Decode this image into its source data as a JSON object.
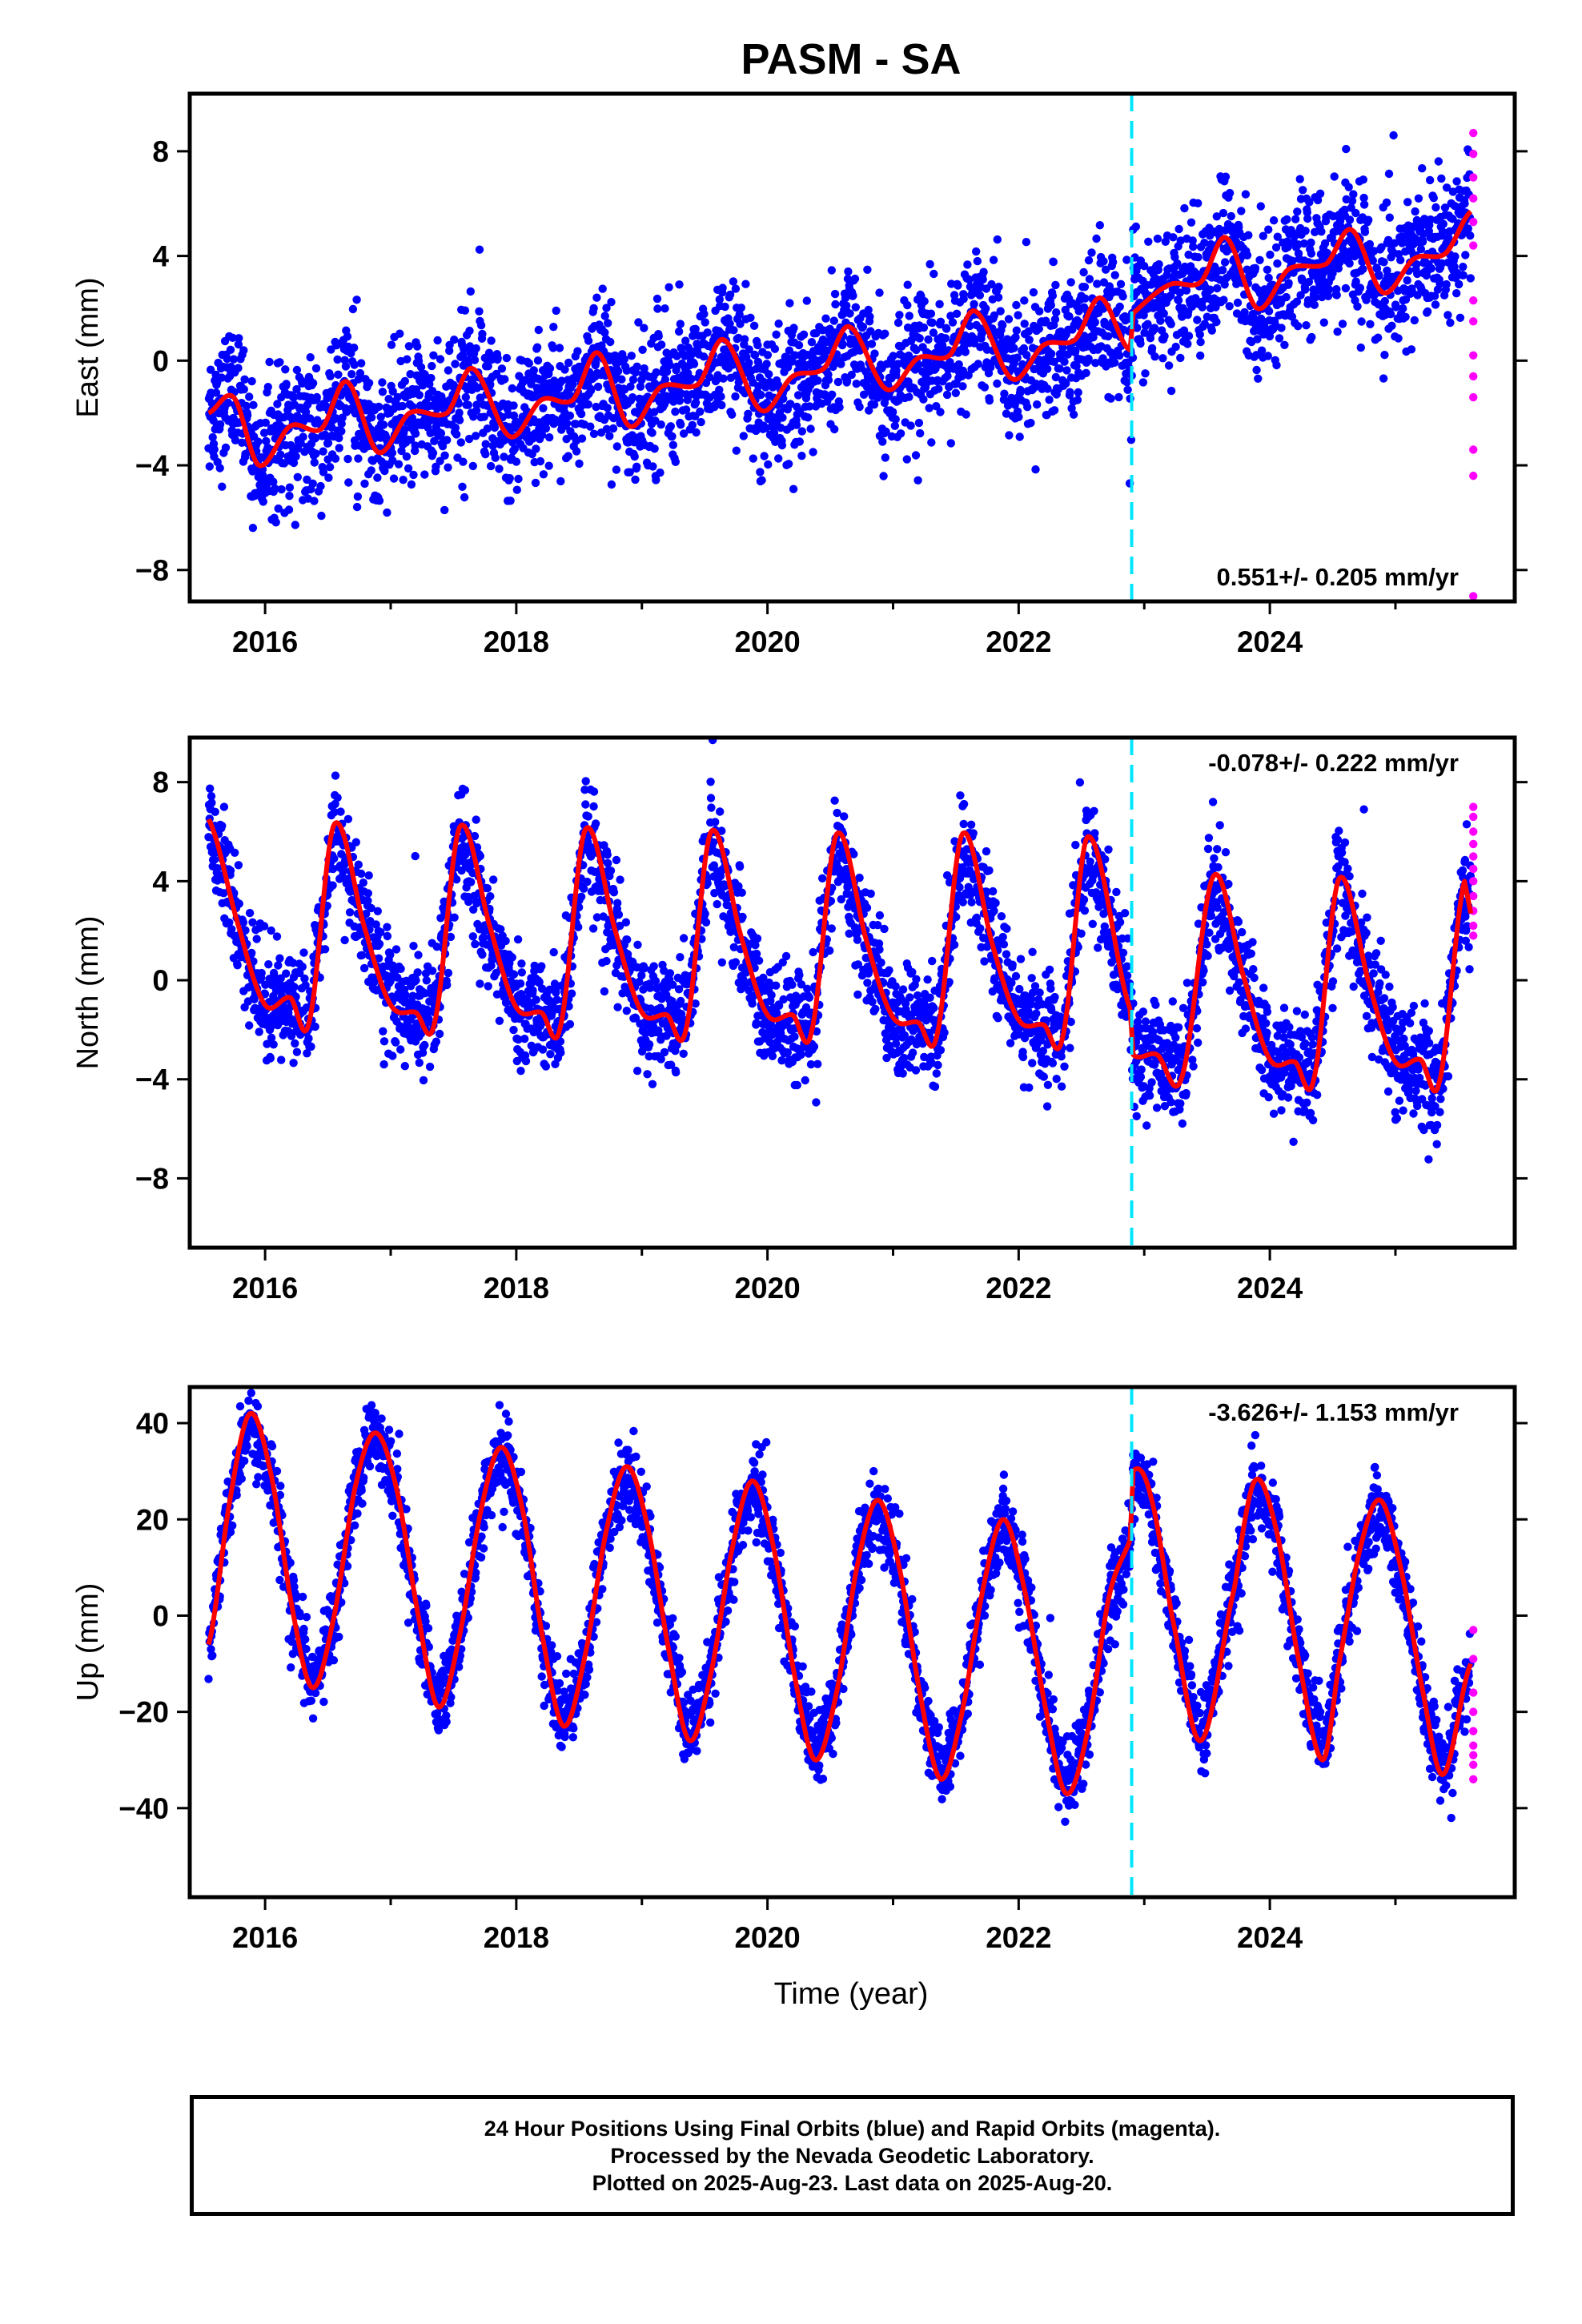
{
  "title": "PASM - SA",
  "colors": {
    "final_points": "#0000ff",
    "rapid_points": "#ff00ff",
    "fit_line": "#ff0000",
    "event_line": "#00e5ff",
    "axes": "#000000"
  },
  "caption": {
    "line1": "24 Hour Positions Using Final Orbits (blue) and Rapid Orbits (magenta).",
    "line2": "Processed by the Nevada Geodetic Laboratory.",
    "line3": "Plotted on 2025-Aug-23. Last data on 2025-Aug-20."
  },
  "chart_data": [
    {
      "type": "scatter",
      "component": "East",
      "ylabel": "East (mm)",
      "xlabel": "",
      "xlim": [
        2015.4,
        2025.95
      ],
      "ylim": [
        -9.2,
        10.2
      ],
      "xticks": [
        2016,
        2018,
        2020,
        2022,
        2024
      ],
      "xtick_labels": [
        "2016",
        "2018",
        "2020",
        "2022",
        "2024"
      ],
      "yticks": [
        -8,
        -4,
        0,
        4,
        8
      ],
      "ytick_labels": [
        "−8",
        "−4",
        "0",
        "4",
        "8"
      ],
      "rate_label": "0.551+/- 0.205 mm/yr",
      "rate_position": "bottom-right",
      "event_line_x": 2022.9,
      "series": [
        {
          "kind": "final_orbits_points",
          "x_range": [
            2015.55,
            2025.6
          ],
          "description_values": {
            "trend_per_year": 0.551,
            "annual_amplitude": 1.2,
            "scatter_sd": 1.3,
            "offset_at_2015_5": -1.6
          }
        },
        {
          "kind": "rapid_orbits_points",
          "x": [
            2025.62,
            2025.62,
            2025.62,
            2025.62,
            2025.62,
            2025.62,
            2025.62,
            2025.62,
            2025.62,
            2025.62,
            2025.62,
            2025.62,
            2025.62,
            2025.62
          ],
          "y": [
            8.7,
            7.9,
            7.0,
            6.2,
            5.3,
            4.4,
            2.3,
            1.5,
            0.2,
            -0.6,
            -1.4,
            -3.4,
            -4.4,
            -9.0
          ]
        },
        {
          "kind": "model_fit",
          "x": [
            2015.55,
            2015.75,
            2015.95,
            2016.2,
            2016.45,
            2016.65,
            2016.9,
            2017.15,
            2017.45,
            2017.65,
            2017.95,
            2018.2,
            2018.45,
            2018.65,
            2018.9,
            2019.15,
            2019.45,
            2019.65,
            2019.95,
            2020.2,
            2020.45,
            2020.65,
            2020.95,
            2021.2,
            2021.45,
            2021.65,
            2021.95,
            2022.2,
            2022.45,
            2022.65,
            2022.89,
            2022.91,
            2023.2,
            2023.45,
            2023.65,
            2023.9,
            2024.15,
            2024.45,
            2024.65,
            2024.9,
            2025.15,
            2025.4,
            2025.6
          ],
          "y": [
            -2.0,
            -1.4,
            -4.0,
            -2.5,
            -2.6,
            -0.8,
            -3.5,
            -2.0,
            -2.0,
            -0.3,
            -2.9,
            -1.5,
            -1.5,
            0.3,
            -2.5,
            -1.0,
            -0.9,
            0.8,
            -1.9,
            -0.6,
            -0.3,
            1.3,
            -1.1,
            0.1,
            0.2,
            1.9,
            -0.7,
            0.6,
            0.8,
            2.4,
            0.4,
            1.8,
            2.9,
            3.0,
            4.7,
            2.0,
            3.5,
            3.7,
            5.0,
            2.6,
            3.9,
            4.1,
            5.7
          ]
        }
      ]
    },
    {
      "type": "scatter",
      "component": "North",
      "ylabel": "North (mm)",
      "xlabel": "",
      "xlim": [
        2015.4,
        2025.95
      ],
      "ylim": [
        -10.8,
        9.8
      ],
      "xticks": [
        2016,
        2018,
        2020,
        2022,
        2024
      ],
      "xtick_labels": [
        "2016",
        "2018",
        "2020",
        "2022",
        "2024"
      ],
      "yticks": [
        -8,
        -4,
        0,
        4,
        8
      ],
      "ytick_labels": [
        "−8",
        "−4",
        "0",
        "4",
        "8"
      ],
      "rate_label": "-0.078+/- 0.222 mm/yr",
      "rate_position": "top-right",
      "event_line_x": 2022.9,
      "series": [
        {
          "kind": "final_orbits_points",
          "x_range": [
            2015.55,
            2025.6
          ],
          "description_values": {
            "trend_per_year": -0.078,
            "annual_amplitude": 3.8,
            "scatter_sd": 1.1
          }
        },
        {
          "kind": "rapid_orbits_points",
          "x": [
            2025.62,
            2025.62,
            2025.62,
            2025.62,
            2025.62,
            2025.62,
            2025.62,
            2025.62,
            2025.62,
            2025.62,
            2025.62
          ],
          "y": [
            7.0,
            6.6,
            6.0,
            5.5,
            5.0,
            4.5,
            4.0,
            3.4,
            2.8,
            2.2,
            1.8
          ]
        },
        {
          "kind": "model_fit",
          "x": [
            2015.55,
            2015.8,
            2016.0,
            2016.2,
            2016.35,
            2016.55,
            2016.8,
            2017.0,
            2017.2,
            2017.35,
            2017.55,
            2017.8,
            2018.0,
            2018.2,
            2018.35,
            2018.55,
            2018.8,
            2019.0,
            2019.2,
            2019.35,
            2019.55,
            2019.8,
            2020.0,
            2020.2,
            2020.35,
            2020.55,
            2020.8,
            2021.0,
            2021.2,
            2021.35,
            2021.55,
            2021.8,
            2022.0,
            2022.2,
            2022.35,
            2022.55,
            2022.89,
            2022.91,
            2023.1,
            2023.3,
            2023.55,
            2023.8,
            2024.0,
            2024.2,
            2024.35,
            2024.55,
            2024.8,
            2025.0,
            2025.2,
            2025.35,
            2025.55,
            2025.6
          ],
          "y": [
            6.5,
            2.0,
            -1.0,
            -0.7,
            -1.7,
            6.3,
            2.0,
            -1.0,
            -1.3,
            -1.7,
            6.2,
            2.0,
            -1.1,
            -1.3,
            -1.9,
            6.1,
            1.8,
            -1.3,
            -1.4,
            -2.0,
            6.0,
            1.6,
            -1.4,
            -1.4,
            -2.1,
            5.9,
            1.4,
            -1.5,
            -1.7,
            -2.2,
            5.9,
            1.3,
            -1.6,
            -1.8,
            -2.3,
            5.8,
            -1.2,
            -3.0,
            -3.0,
            -3.9,
            4.2,
            0.0,
            -3.2,
            -3.3,
            -4.0,
            4.1,
            -0.3,
            -3.3,
            -3.2,
            -4.1,
            4.0,
            2.7
          ]
        }
      ]
    },
    {
      "type": "scatter",
      "component": "Up",
      "ylabel": "Up (mm)",
      "xlabel": "Time (year)",
      "xlim": [
        2015.4,
        2025.95
      ],
      "ylim": [
        -58.5,
        47.5
      ],
      "xticks": [
        2016,
        2018,
        2020,
        2022,
        2024
      ],
      "xtick_labels": [
        "2016",
        "2018",
        "2020",
        "2022",
        "2024"
      ],
      "yticks": [
        -40,
        -20,
        0,
        20,
        40
      ],
      "ytick_labels": [
        "−40",
        "−20",
        "0",
        "20",
        "40"
      ],
      "rate_label": "-3.626+/- 1.153 mm/yr",
      "rate_position": "top-right",
      "event_line_x": 2022.9,
      "series": [
        {
          "kind": "final_orbits_points",
          "x_range": [
            2015.55,
            2025.6
          ],
          "description_values": {
            "trend_per_year": -3.626,
            "annual_amplitude": 29,
            "scatter_sd": 4.0
          }
        },
        {
          "kind": "rapid_orbits_points",
          "x": [
            2025.62,
            2025.62,
            2025.62,
            2025.62,
            2025.62,
            2025.62,
            2025.62,
            2025.62,
            2025.62
          ],
          "y": [
            -3,
            -9,
            -16,
            -20,
            -24,
            -27,
            -29,
            -31,
            -34
          ]
        },
        {
          "kind": "model_fit",
          "x": [
            2015.55,
            2015.72,
            2015.88,
            2016.05,
            2016.22,
            2016.38,
            2016.55,
            2016.72,
            2016.88,
            2017.05,
            2017.22,
            2017.38,
            2017.55,
            2017.72,
            2017.88,
            2018.05,
            2018.22,
            2018.38,
            2018.55,
            2018.72,
            2018.88,
            2019.05,
            2019.22,
            2019.38,
            2019.55,
            2019.72,
            2019.88,
            2020.05,
            2020.22,
            2020.38,
            2020.55,
            2020.72,
            2020.88,
            2021.05,
            2021.22,
            2021.38,
            2021.55,
            2021.72,
            2021.88,
            2022.05,
            2022.22,
            2022.38,
            2022.55,
            2022.72,
            2022.89,
            2022.91,
            2023.05,
            2023.22,
            2023.45,
            2023.72,
            2023.88,
            2024.05,
            2024.22,
            2024.42,
            2024.55,
            2024.72,
            2024.88,
            2025.05,
            2025.22,
            2025.38,
            2025.6
          ],
          "y": [
            -6,
            24,
            42,
            29,
            1,
            -15,
            0,
            27,
            38,
            26,
            0,
            -19,
            -4,
            22,
            35,
            22,
            -6,
            -23,
            -8,
            18,
            31,
            18,
            -8,
            -26,
            -12,
            14,
            28,
            14,
            -13,
            -30,
            -16,
            11,
            24,
            10,
            -17,
            -34,
            -20,
            6,
            20,
            5,
            -20,
            -37,
            -24,
            4,
            16,
            30,
            25,
            0,
            -26,
            6,
            28,
            18,
            -8,
            -30,
            -10,
            14,
            24,
            9,
            -16,
            -33,
            -10
          ]
        }
      ]
    }
  ]
}
